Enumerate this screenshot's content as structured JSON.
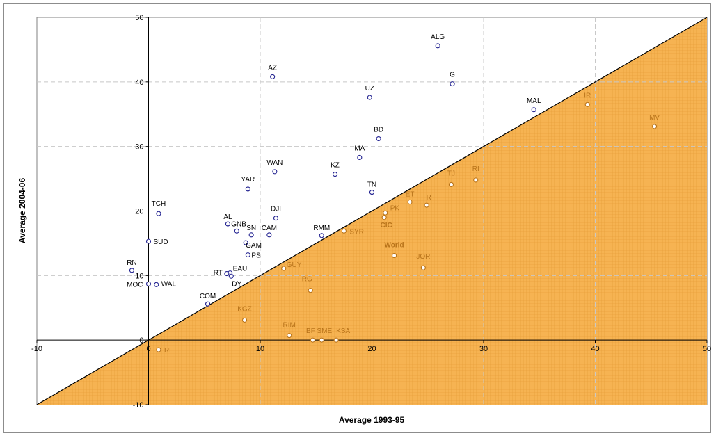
{
  "chart_data": {
    "type": "scatter",
    "title": "",
    "xlabel": "Average 1993-95",
    "ylabel": "Average 2004-06",
    "xlim": [
      -10,
      50
    ],
    "ylim": [
      -10,
      50
    ],
    "x_ticks": [
      -10,
      0,
      10,
      20,
      30,
      40,
      50
    ],
    "y_ticks": [
      -10,
      0,
      10,
      20,
      30,
      40,
      50
    ],
    "grid": true,
    "legend": "none",
    "reference_line": {
      "from": [
        -10,
        -10
      ],
      "to": [
        50,
        50
      ],
      "label": ""
    },
    "colors": {
      "above_diagonal": "#1f1f8f",
      "below_diagonal": "#b8731a",
      "shaded_region": "#f6b352",
      "grid": "#c8c8c8"
    },
    "points": [
      {
        "label": "ALG",
        "x": 25.9,
        "y": 45.6,
        "group": "above"
      },
      {
        "label": "AZ",
        "x": 11.1,
        "y": 40.8,
        "group": "above"
      },
      {
        "label": "G",
        "x": 27.2,
        "y": 39.7,
        "group": "above"
      },
      {
        "label": "UZ",
        "x": 19.8,
        "y": 37.6,
        "group": "above"
      },
      {
        "label": "MAL",
        "x": 34.5,
        "y": 35.7,
        "group": "above"
      },
      {
        "label": "BD",
        "x": 20.6,
        "y": 31.2,
        "group": "above"
      },
      {
        "label": "MA",
        "x": 18.9,
        "y": 28.3,
        "group": "above"
      },
      {
        "label": "WAN",
        "x": 11.3,
        "y": 26.1,
        "group": "above"
      },
      {
        "label": "KZ",
        "x": 16.7,
        "y": 25.7,
        "group": "above"
      },
      {
        "label": "YAR",
        "x": 8.9,
        "y": 23.4,
        "group": "above"
      },
      {
        "label": "TN",
        "x": 20.0,
        "y": 22.9,
        "group": "above"
      },
      {
        "label": "TCH",
        "x": 0.9,
        "y": 19.6,
        "group": "above"
      },
      {
        "label": "DJI",
        "x": 11.4,
        "y": 18.9,
        "group": "above"
      },
      {
        "label": "AL",
        "x": 7.1,
        "y": 18.0,
        "group": "above"
      },
      {
        "label": "GNB",
        "x": 7.9,
        "y": 16.9,
        "group": "above"
      },
      {
        "label": "SN",
        "x": 9.2,
        "y": 16.3,
        "group": "above"
      },
      {
        "label": "CAM",
        "x": 10.8,
        "y": 16.3,
        "group": "above"
      },
      {
        "label": "RMM",
        "x": 15.5,
        "y": 16.2,
        "group": "above"
      },
      {
        "label": "SUD",
        "x": 0.0,
        "y": 15.3,
        "group": "above"
      },
      {
        "label": "GAM",
        "x": 8.7,
        "y": 15.1,
        "group": "above"
      },
      {
        "label": "PS",
        "x": 8.9,
        "y": 13.2,
        "group": "above"
      },
      {
        "label": "RN",
        "x": -1.5,
        "y": 10.8,
        "group": "above"
      },
      {
        "label": "EAU",
        "x": 7.3,
        "y": 10.4,
        "group": "above"
      },
      {
        "label": "RT",
        "x": 7.0,
        "y": 10.3,
        "group": "above"
      },
      {
        "label": "DY",
        "x": 7.4,
        "y": 9.9,
        "group": "above"
      },
      {
        "label": "MOC",
        "x": 0.0,
        "y": 8.7,
        "group": "above"
      },
      {
        "label": "WAL",
        "x": 0.7,
        "y": 8.6,
        "group": "above"
      },
      {
        "label": "COM",
        "x": 5.3,
        "y": 5.6,
        "group": "above"
      },
      {
        "label": "IR",
        "x": 39.3,
        "y": 36.5,
        "group": "below"
      },
      {
        "label": "MV",
        "x": 45.3,
        "y": 33.1,
        "group": "below"
      },
      {
        "label": "RI",
        "x": 29.3,
        "y": 24.8,
        "group": "below"
      },
      {
        "label": "TJ",
        "x": 27.1,
        "y": 24.1,
        "group": "below"
      },
      {
        "label": "ET",
        "x": 23.4,
        "y": 21.4,
        "group": "below"
      },
      {
        "label": "TR",
        "x": 24.9,
        "y": 20.9,
        "group": "below"
      },
      {
        "label": "PK",
        "x": 21.2,
        "y": 19.7,
        "group": "below"
      },
      {
        "label": "CIC",
        "x": 21.1,
        "y": 19.0,
        "group": "below",
        "bold": true
      },
      {
        "label": "SYR",
        "x": 17.5,
        "y": 16.9,
        "group": "below"
      },
      {
        "label": "World",
        "x": 22.0,
        "y": 13.1,
        "group": "below",
        "bold": true
      },
      {
        "label": "JOR",
        "x": 24.6,
        "y": 11.2,
        "group": "below"
      },
      {
        "label": "GUY",
        "x": 12.1,
        "y": 11.1,
        "group": "below"
      },
      {
        "label": "RG",
        "x": 14.5,
        "y": 7.7,
        "group": "below"
      },
      {
        "label": "KGZ",
        "x": 8.6,
        "y": 3.1,
        "group": "below"
      },
      {
        "label": "RIM",
        "x": 12.6,
        "y": 0.7,
        "group": "below"
      },
      {
        "label": "BF",
        "x": 14.7,
        "y": 0.0,
        "group": "below"
      },
      {
        "label": "SME",
        "x": 15.5,
        "y": 0.0,
        "group": "below"
      },
      {
        "label": "KSA",
        "x": 16.8,
        "y": 0.0,
        "group": "below"
      },
      {
        "label": "RL",
        "x": 0.9,
        "y": -1.5,
        "group": "below"
      }
    ]
  }
}
